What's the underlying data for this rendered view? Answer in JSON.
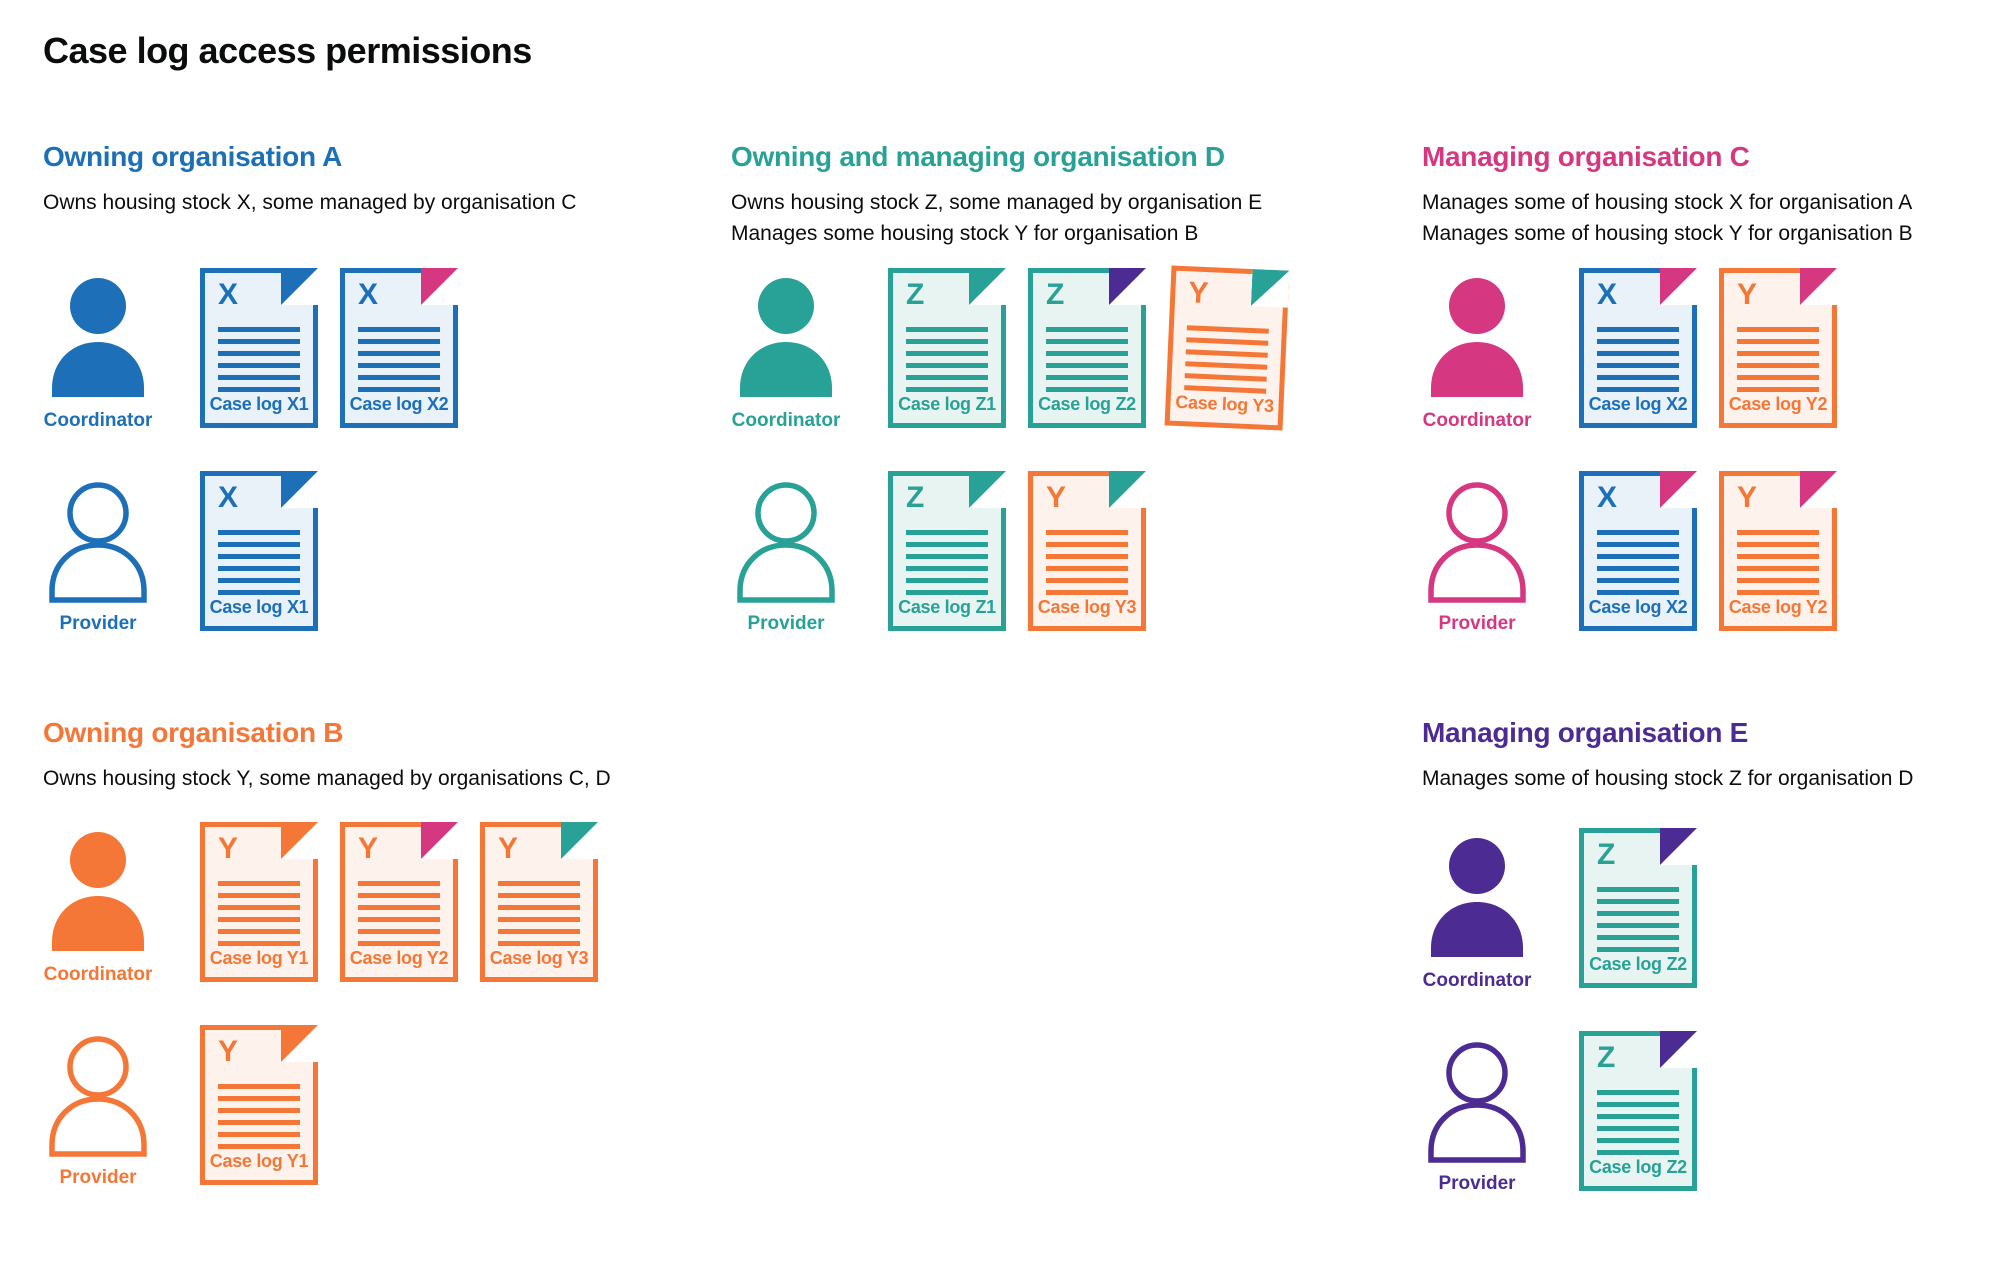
{
  "title": "Case log access permissions",
  "palette": {
    "blue": "#1d70b8",
    "teal": "#28a197",
    "orange": "#f47738",
    "pink": "#d53880",
    "purple": "#4c2c92",
    "text": "#0b0c0c",
    "light": {
      "blue": "#e9f1f9",
      "teal": "#e8f4f1",
      "orange": "#fef3ec"
    }
  },
  "sections": [
    {
      "id": "owning-organisation-a",
      "heading": "Owning organisation A",
      "color": "blue",
      "description": [
        "Owns housing stock X, some managed by organisation C"
      ],
      "rows": [
        {
          "role": "Coordinator",
          "docs": [
            {
              "letter": "X",
              "label": "Case log X1",
              "stock": "blue",
              "corner": "blue"
            },
            {
              "letter": "X",
              "label": "Case log X2",
              "stock": "blue",
              "corner": "pink"
            }
          ]
        },
        {
          "role": "Provider",
          "docs": [
            {
              "letter": "X",
              "label": "Case log X1",
              "stock": "blue",
              "corner": "blue"
            }
          ]
        }
      ]
    },
    {
      "id": "owning-and-managing-organisation-d",
      "heading": "Owning and managing organisation D",
      "color": "teal",
      "description": [
        "Owns housing stock Z, some managed by organisation E",
        "Manages some housing stock Y for organisation B"
      ],
      "rows": [
        {
          "role": "Coordinator",
          "docs": [
            {
              "letter": "Z",
              "label": "Case log Z1",
              "stock": "teal",
              "corner": "teal"
            },
            {
              "letter": "Z",
              "label": "Case log Z2",
              "stock": "teal",
              "corner": "purple"
            },
            {
              "letter": "Y",
              "label": "Case log Y3",
              "stock": "orange",
              "corner": "teal"
            }
          ]
        },
        {
          "role": "Provider",
          "docs": [
            {
              "letter": "Z",
              "label": "Case log Z1",
              "stock": "teal",
              "corner": "teal"
            },
            {
              "letter": "Y",
              "label": "Case log Y3",
              "stock": "orange",
              "corner": "teal"
            }
          ]
        }
      ]
    },
    {
      "id": "managing-organisation-c",
      "heading": "Managing organisation C",
      "color": "pink",
      "description": [
        "Manages some of housing stock X for organisation A",
        "Manages some of housing stock Y for organisation B"
      ],
      "rows": [
        {
          "role": "Coordinator",
          "docs": [
            {
              "letter": "X",
              "label": "Case log X2",
              "stock": "blue",
              "corner": "pink"
            },
            {
              "letter": "Y",
              "label": "Case log Y2",
              "stock": "orange",
              "corner": "pink"
            }
          ]
        },
        {
          "role": "Provider",
          "docs": [
            {
              "letter": "X",
              "label": "Case log X2",
              "stock": "blue",
              "corner": "pink"
            },
            {
              "letter": "Y",
              "label": "Case log Y2",
              "stock": "orange",
              "corner": "pink"
            }
          ]
        }
      ]
    },
    {
      "id": "owning-organisation-b",
      "heading": "Owning organisation B",
      "color": "orange",
      "description": [
        "Owns housing stock Y, some managed by organisations C, D"
      ],
      "rows": [
        {
          "role": "Coordinator",
          "docs": [
            {
              "letter": "Y",
              "label": "Case log Y1",
              "stock": "orange",
              "corner": "orange"
            },
            {
              "letter": "Y",
              "label": "Case log Y2",
              "stock": "orange",
              "corner": "pink"
            },
            {
              "letter": "Y",
              "label": "Case log Y3",
              "stock": "orange",
              "corner": "teal"
            }
          ]
        },
        {
          "role": "Provider",
          "docs": [
            {
              "letter": "Y",
              "label": "Case log Y1",
              "stock": "orange",
              "corner": "orange"
            }
          ]
        }
      ]
    },
    {
      "id": "managing-organisation-e",
      "heading": "Managing organisation E",
      "color": "purple",
      "description": [
        "Manages some of housing stock Z for organisation D"
      ],
      "rows": [
        {
          "role": "Coordinator",
          "docs": [
            {
              "letter": "Z",
              "label": "Case log Z2",
              "stock": "teal",
              "corner": "purple"
            }
          ]
        },
        {
          "role": "Provider",
          "docs": [
            {
              "letter": "Z",
              "label": "Case log Z2",
              "stock": "teal",
              "corner": "purple"
            }
          ]
        }
      ]
    }
  ]
}
